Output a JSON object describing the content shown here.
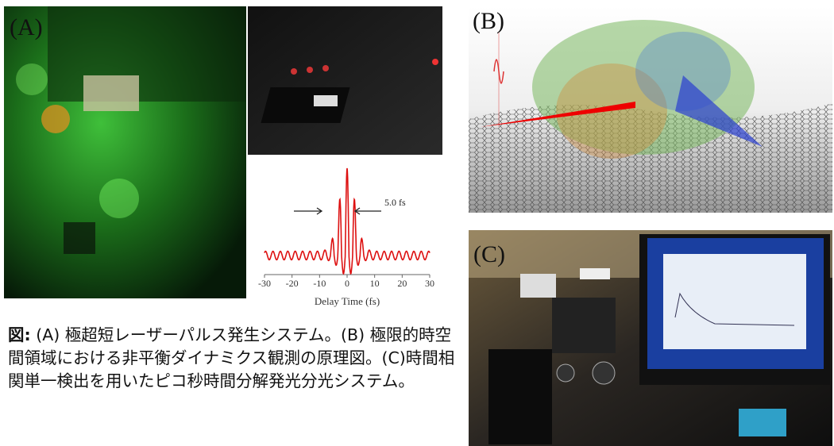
{
  "panels": {
    "a": {
      "label": "(A)"
    },
    "b": {
      "label": "(B)"
    },
    "c": {
      "label": "(C)"
    }
  },
  "inset": {
    "xlim": [
      -30,
      30
    ],
    "xticks": [
      -30,
      -20,
      -10,
      0,
      10,
      20,
      30
    ],
    "xlabel": "Delay Time (fs)",
    "annotation": "5.0 fs"
  },
  "caption": {
    "lead": "図:",
    "text": "(A) 極超短レーザーパルス発生システム。(B) 極限的時空間領域における非平衡ダイナミクス観測の原理図。(C)時間相関単一検出を用いたピコ秒時間分解発光分光システム。"
  }
}
